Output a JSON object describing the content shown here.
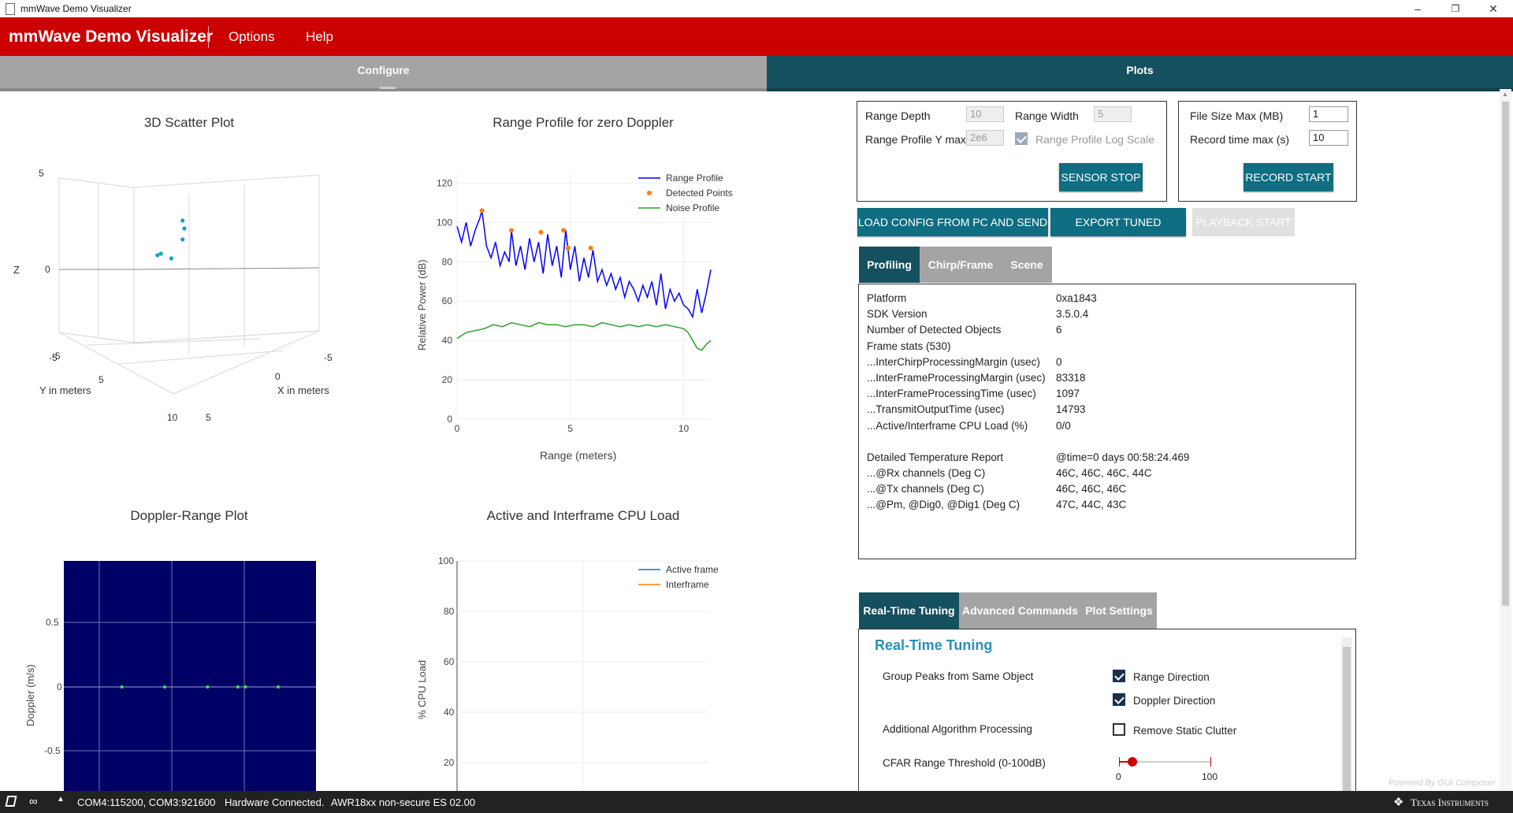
{
  "window": {
    "title": "mmWave Demo Visualizer"
  },
  "app": {
    "brand": "mmWave Demo Visualizer",
    "menu": [
      "Options",
      "Help"
    ]
  },
  "top_tabs": {
    "configure": "Configure",
    "plots": "Plots"
  },
  "plots": {
    "scatter3d": {
      "title": "3D Scatter Plot",
      "z_label": "Z",
      "x_label": "X in meters",
      "y_label": "Y in meters",
      "z_ticks": [
        "5",
        "0",
        "-5"
      ],
      "y_ticks": [
        "-5",
        "5",
        "10"
      ],
      "x_ticks": [
        "-5",
        "0",
        "5"
      ]
    },
    "range_profile": {
      "title": "Range Profile for zero Doppler",
      "xlabel": "Range (meters)",
      "ylabel": "Relative Power (dB)",
      "legend": [
        "Range Profile",
        "Detected Points",
        "Noise Profile"
      ]
    },
    "doppler_range": {
      "title": "Doppler-Range Plot",
      "ylabel": "Doppler (m/s)"
    },
    "cpu_load": {
      "title": "Active and Interframe  CPU Load",
      "ylabel": "% CPU Load",
      "legend": [
        "Active frame",
        "Interframe"
      ]
    }
  },
  "chart_data": [
    {
      "type": "scatter",
      "title": "3D Scatter Plot",
      "points_xz_view": [
        [
          -2.8,
          0.9
        ],
        [
          -3.2,
          0.8
        ],
        [
          -1.6,
          0.6
        ],
        [
          -0.3,
          1.8
        ],
        [
          -0.3,
          3.0
        ],
        [
          -0.1,
          2.5
        ]
      ]
    },
    {
      "type": "line",
      "title": "Range Profile for zero Doppler",
      "xlabel": "Range (meters)",
      "ylabel": "Relative Power (dB)",
      "xlim": [
        0,
        11.2
      ],
      "ylim": [
        0,
        125
      ],
      "x_ticks": [
        0,
        5,
        10
      ],
      "y_ticks": [
        0,
        20,
        40,
        60,
        80,
        100,
        120
      ],
      "series": [
        {
          "name": "Range Profile",
          "color": "#0000ff",
          "x": [
            0,
            0.2,
            0.4,
            0.6,
            0.8,
            1.0,
            1.1,
            1.3,
            1.5,
            1.7,
            1.9,
            2.1,
            2.3,
            2.4,
            2.6,
            2.8,
            3.0,
            3.2,
            3.4,
            3.6,
            3.8,
            4.0,
            4.2,
            4.4,
            4.6,
            4.8,
            5.0,
            5.2,
            5.4,
            5.6,
            5.8,
            6.0,
            6.2,
            6.4,
            6.6,
            6.8,
            7.0,
            7.2,
            7.4,
            7.6,
            7.8,
            8.0,
            8.2,
            8.4,
            8.6,
            8.8,
            9.0,
            9.2,
            9.4,
            9.6,
            9.8,
            10.0,
            10.2,
            10.4,
            10.6,
            10.8,
            11.0,
            11.2
          ],
          "y": [
            98,
            90,
            100,
            88,
            96,
            102,
            106,
            88,
            82,
            90,
            78,
            85,
            80,
            96,
            78,
            88,
            76,
            92,
            80,
            90,
            74,
            94,
            78,
            88,
            72,
            96,
            76,
            88,
            70,
            82,
            72,
            86,
            70,
            76,
            68,
            74,
            66,
            72,
            62,
            70,
            66,
            60,
            68,
            62,
            70,
            58,
            74,
            56,
            66,
            60,
            64,
            58,
            56,
            52,
            66,
            54,
            64,
            76
          ]
        },
        {
          "name": "Detected Points",
          "color": "#ff7f0e",
          "x": [
            1.1,
            2.4,
            3.7,
            4.7,
            4.9,
            5.9
          ],
          "y": [
            106,
            96,
            95,
            96,
            87,
            87
          ]
        },
        {
          "name": "Noise Profile",
          "color": "#2ca02c",
          "x": [
            0,
            0.4,
            0.8,
            1.2,
            1.6,
            2.0,
            2.4,
            2.8,
            3.2,
            3.6,
            4.0,
            4.4,
            4.8,
            5.2,
            5.6,
            6.0,
            6.4,
            6.8,
            7.2,
            7.6,
            8.0,
            8.4,
            8.8,
            9.2,
            9.6,
            10.0,
            10.2,
            10.4,
            10.6,
            10.8,
            11.0,
            11.2
          ],
          "y": [
            41,
            44,
            45,
            46,
            48,
            47,
            49,
            48,
            47,
            49,
            48,
            48,
            47,
            48,
            48,
            47,
            49,
            48,
            47,
            48,
            47,
            48,
            47,
            48,
            47,
            46,
            44,
            40,
            36,
            35,
            38,
            40
          ]
        }
      ]
    },
    {
      "type": "heatmap",
      "title": "Doppler-Range Plot",
      "ylabel": "Doppler (m/s)",
      "ylim": [
        -0.95,
        0.95
      ],
      "y_ticks": [
        0.5,
        0,
        -0.5
      ],
      "points_range_doppler": [
        [
          2.3,
          0
        ],
        [
          4.0,
          0
        ],
        [
          5.7,
          0
        ],
        [
          6.9,
          0
        ],
        [
          7.2,
          0
        ],
        [
          8.5,
          0
        ]
      ]
    },
    {
      "type": "line",
      "title": "Active and Interframe  CPU Load",
      "ylabel": "% CPU Load",
      "ylim": [
        0,
        100
      ],
      "y_ticks": [
        100,
        80,
        60,
        40,
        20
      ],
      "series": [
        {
          "name": "Active frame",
          "color": "#1f77b4",
          "values": []
        },
        {
          "name": "Interframe",
          "color": "#ff7f0e",
          "values": []
        }
      ]
    }
  ],
  "controls": {
    "range_depth_label": "Range Depth",
    "range_depth": "10",
    "range_width_label": "Range Width",
    "range_width": "5",
    "range_ymax_label": "Range Profile Y max",
    "range_ymax": "2e6",
    "log_scale_label": "Range Profile Log Scale",
    "sensor_stop": "SENSOR STOP",
    "file_size_label": "File Size Max (MB)",
    "file_size": "1",
    "record_time_label": "Record time max (s)",
    "record_time": "10",
    "record_start": "RECORD START",
    "load_config": "LOAD CONFIG FROM PC AND SEND",
    "export_profile": "EXPORT TUNED PROFILE",
    "playback_start": "PLAYBACK START"
  },
  "info_tabs": [
    "Profiling",
    "Chirp/Frame",
    "Scene"
  ],
  "profiling": {
    "rows": [
      {
        "k": "Platform",
        "v": "0xa1843"
      },
      {
        "k": "SDK Version",
        "v": "3.5.0.4"
      },
      {
        "k": "Number of Detected Objects",
        "v": "6"
      },
      {
        "k": "Frame stats (530)",
        "v": ""
      },
      {
        "k": "...InterChirpProcessingMargin (usec)",
        "v": "0"
      },
      {
        "k": "...InterFrameProcessingMargin (usec)",
        "v": "83318"
      },
      {
        "k": "...InterFrameProcessingTime (usec)",
        "v": "1097"
      },
      {
        "k": "...TransmitOutputTime (usec)",
        "v": "14793"
      },
      {
        "k": "...Active/Interframe CPU Load (%)",
        "v": "0/0"
      }
    ],
    "temp_rows": [
      {
        "k": "Detailed Temperature Report",
        "v": "@time=0 days 00:58:24.469"
      },
      {
        "k": "...@Rx channels (Deg C)",
        "v": "46C, 46C, 46C, 44C"
      },
      {
        "k": "...@Tx channels (Deg C)",
        "v": "46C, 46C, 46C"
      },
      {
        "k": "...@Pm, @Dig0, @Dig1 (Deg C)",
        "v": "47C, 44C, 43C"
      }
    ]
  },
  "tuning_tabs": [
    "Real-Time Tuning",
    "Advanced Commands",
    "Plot Settings"
  ],
  "tuning": {
    "heading": "Real-Time Tuning",
    "group_peaks_label": "Group Peaks from Same Object",
    "range_direction": "Range Direction",
    "doppler_direction": "Doppler Direction",
    "additional_label": "Additional Algorithm Processing",
    "remove_static": "Remove Static Clutter",
    "cfar_label": "CFAR Range Threshold (0-100dB)",
    "slider_min": "0",
    "slider_max": "100",
    "slider_value": 15
  },
  "watermark": "Powered By GUI Composer",
  "status": {
    "ports": "COM4:115200, COM3:921600",
    "connection": "Hardware Connected.",
    "device": "AWR18xx non-secure ES 02.00",
    "vendor": "Texas Instruments"
  },
  "colors": {
    "brand_red": "#cc0000",
    "teal": "#0f6e81",
    "tab_active": "#15505f",
    "tab_gray": "#a4a4a4",
    "heatmap_bg": "#000066"
  }
}
